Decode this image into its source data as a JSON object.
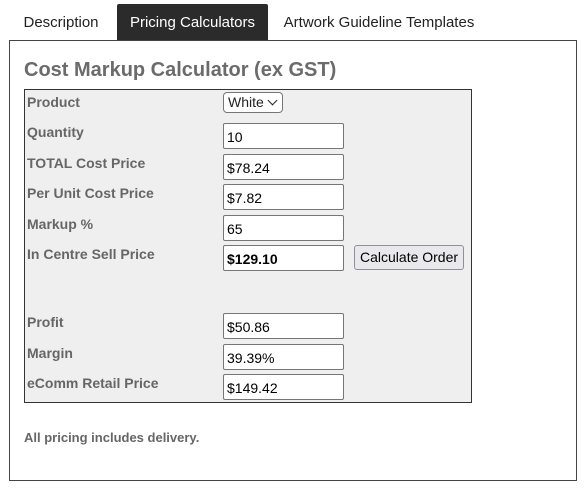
{
  "tabs": [
    {
      "label": "Description",
      "active": false
    },
    {
      "label": "Pricing Calculators",
      "active": true
    },
    {
      "label": "Artwork Guideline Templates",
      "active": false
    }
  ],
  "calculator": {
    "title": "Cost Markup Calculator (ex GST)",
    "product_label": "Product",
    "product_selected": "White",
    "quantity_label": "Quantity",
    "quantity_value": "10",
    "total_cost_label": "TOTAL Cost Price",
    "total_cost_value": "$78.24",
    "unit_cost_label": "Per Unit Cost Price",
    "unit_cost_value": "$7.82",
    "markup_label": "Markup %",
    "markup_value": "65",
    "sell_price_label": "In Centre Sell Price",
    "sell_price_value": "$129.10",
    "calculate_button": "Calculate Order",
    "profit_label": "Profit",
    "profit_value": "$50.86",
    "margin_label": "Margin",
    "margin_value": "39.39%",
    "ecomm_label": "eComm Retail Price",
    "ecomm_value": "$149.42"
  },
  "footnote": "All pricing includes delivery."
}
